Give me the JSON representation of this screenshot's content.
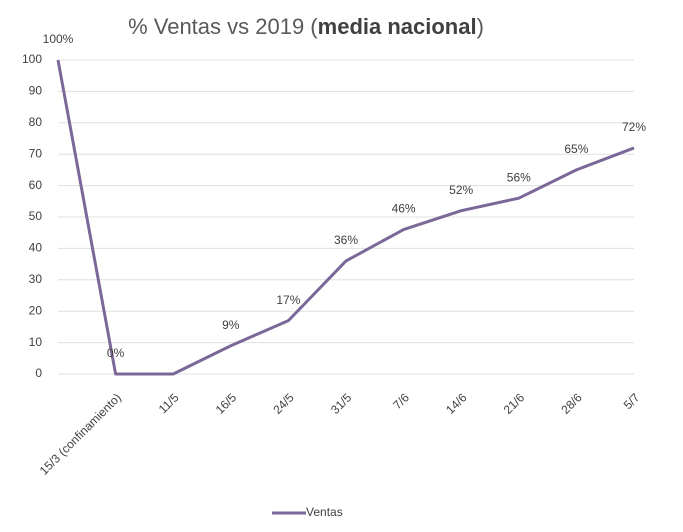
{
  "chart_data": {
    "type": "line",
    "title": [
      "% Ventas vs 2019 (",
      "media nacional",
      ")"
    ],
    "categories": [
      null,
      "15/3 (confinamiento)",
      "11/5",
      "16/5",
      "24/5",
      "31/5",
      "7/6",
      "14/6",
      "21/6",
      "28/6",
      "5/7"
    ],
    "series": [
      {
        "name": "Ventas",
        "color": "#7b6798",
        "values": [
          100,
          0,
          0,
          9,
          17,
          36,
          46,
          52,
          56,
          65,
          72
        ],
        "value_labels": [
          "100%",
          "0%",
          null,
          "9%",
          "17%",
          "36%",
          "46%",
          "52%",
          "56%",
          "65%",
          "72%"
        ]
      }
    ],
    "ylim": [
      0,
      100
    ],
    "yticks": [
      0,
      10,
      20,
      30,
      40,
      50,
      60,
      70,
      80,
      90,
      100
    ],
    "grid": true,
    "legend": "bottom"
  }
}
